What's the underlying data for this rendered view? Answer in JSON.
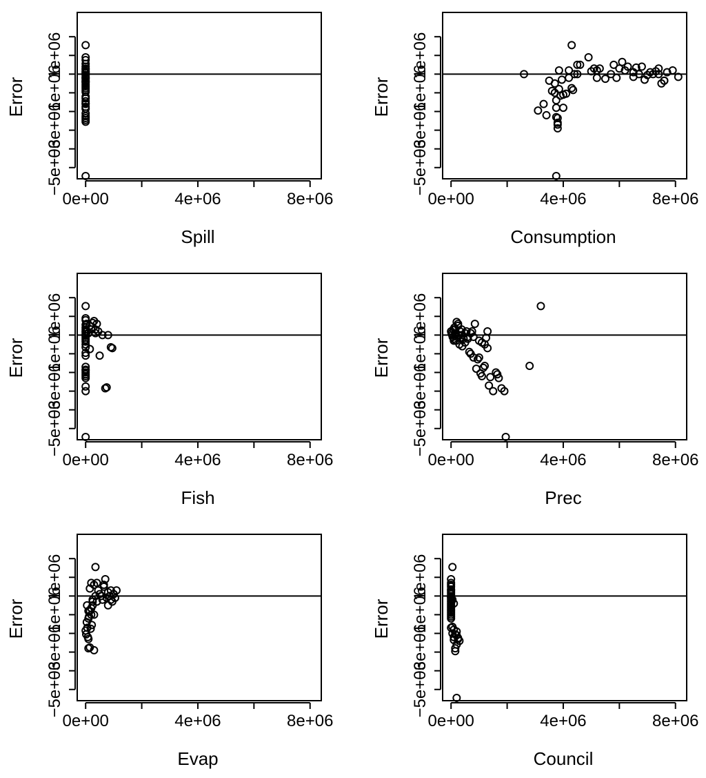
{
  "chart_data": [
    {
      "type": "scatter",
      "xlabel": "Spill",
      "ylabel": "Error",
      "xlim": [
        -300000,
        8400000
      ],
      "ylim": [
        -5600000,
        3300000
      ],
      "xticks": [
        0,
        2000000,
        4000000,
        6000000,
        8000000
      ],
      "xtick_labels": [
        "0e+00",
        "",
        "4e+06",
        "",
        "8e+06"
      ],
      "yticks": [
        -5000000,
        -4000000,
        -3000000,
        -2000000,
        -1000000,
        0,
        1000000,
        2000000
      ],
      "ytick_labels": [
        "−5e+06",
        "",
        "−3e+06",
        "",
        "−1e+06",
        "",
        "1e+06",
        ""
      ],
      "hline": 0,
      "x": [
        0,
        0,
        0,
        0,
        0,
        0,
        0,
        0,
        0,
        0,
        0,
        0,
        0,
        0,
        0,
        0,
        0,
        0,
        0,
        0,
        0,
        0,
        0,
        0,
        0,
        0,
        0,
        0,
        0,
        0,
        0,
        0,
        0,
        0,
        0
      ],
      "y": [
        1550000,
        900000,
        750000,
        550000,
        400000,
        250000,
        150000,
        50000,
        -50000,
        -150000,
        -250000,
        -350000,
        -450000,
        -550000,
        -650000,
        -750000,
        -850000,
        -1200000,
        -1300000,
        -1450000,
        -1600000,
        -1750000,
        -1850000,
        -2100000,
        -2250000,
        -2350000,
        -2450000,
        -2550000,
        -5450000,
        300000,
        100000,
        -200000,
        -400000,
        -950000,
        -1550000
      ]
    },
    {
      "type": "scatter",
      "xlabel": "Consumption",
      "ylabel": "Error",
      "xlim": [
        -300000,
        8400000
      ],
      "ylim": [
        -5600000,
        3300000
      ],
      "xticks": [
        0,
        2000000,
        4000000,
        6000000,
        8000000
      ],
      "xtick_labels": [
        "0e+00",
        "",
        "4e+06",
        "",
        "8e+06"
      ],
      "yticks": [
        -5000000,
        -4000000,
        -3000000,
        -2000000,
        -1000000,
        0,
        1000000,
        2000000
      ],
      "ytick_labels": [
        "−5e+06",
        "",
        "−3e+06",
        "",
        "−1e+06",
        "",
        "1e+06",
        ""
      ],
      "hline": 0,
      "x": [
        2600000,
        3100000,
        3300000,
        3400000,
        3500000,
        3600000,
        3700000,
        3700000,
        3750000,
        3750000,
        3800000,
        3800000,
        3850000,
        3850000,
        3900000,
        3950000,
        4000000,
        4100000,
        4200000,
        4300000,
        4350000,
        4400000,
        4500000,
        4500000,
        4600000,
        4900000,
        5000000,
        5100000,
        5200000,
        5300000,
        5500000,
        5700000,
        5800000,
        5900000,
        6000000,
        6100000,
        6200000,
        6300000,
        6500000,
        6600000,
        6700000,
        6800000,
        6900000,
        7100000,
        7200000,
        7300000,
        7400000,
        7500000,
        7600000,
        7700000,
        7900000,
        8100000,
        3800000,
        3800000,
        3750000,
        3750000,
        4000000,
        4200000,
        4300000,
        5200000,
        6500000,
        7000000,
        7400000,
        7600000
      ],
      "y": [
        0,
        -1950000,
        -1600000,
        -2200000,
        -350000,
        -900000,
        -1000000,
        -500000,
        -1800000,
        -2300000,
        -2700000,
        -2900000,
        -800000,
        200000,
        -1150000,
        -300000,
        -1800000,
        -1050000,
        200000,
        1550000,
        -850000,
        0,
        500000,
        0,
        500000,
        900000,
        150000,
        300000,
        200000,
        300000,
        -250000,
        0,
        500000,
        -200000,
        300000,
        650000,
        200000,
        400000,
        -150000,
        350000,
        0,
        400000,
        -300000,
        100000,
        0,
        150000,
        300000,
        -500000,
        -350000,
        100000,
        200000,
        -150000,
        -2350000,
        -2600000,
        -1400000,
        -5450000,
        -1100000,
        -200000,
        -750000,
        -200000,
        100000,
        -50000,
        0,
        -350000
      ]
    },
    {
      "type": "scatter",
      "xlabel": "Fish",
      "ylabel": "Error",
      "xlim": [
        -300000,
        8400000
      ],
      "ylim": [
        -5600000,
        3300000
      ],
      "xticks": [
        0,
        2000000,
        4000000,
        6000000,
        8000000
      ],
      "xtick_labels": [
        "0e+00",
        "",
        "4e+06",
        "",
        "8e+06"
      ],
      "yticks": [
        -5000000,
        -4000000,
        -3000000,
        -2000000,
        -1000000,
        0,
        1000000,
        2000000
      ],
      "ytick_labels": [
        "−5e+06",
        "",
        "−3e+06",
        "",
        "−1e+06",
        "",
        "1e+06",
        ""
      ],
      "hline": 0,
      "x": [
        0,
        0,
        0,
        0,
        0,
        0,
        0,
        0,
        0,
        0,
        0,
        0,
        0,
        0,
        0,
        0,
        0,
        0,
        0,
        0,
        0,
        0,
        0,
        0,
        0,
        0,
        0,
        30000,
        50000,
        100000,
        150000,
        200000,
        300000,
        350000,
        400000,
        450000,
        500000,
        600000,
        700000,
        750000,
        800000,
        900000,
        950000,
        350000,
        250000,
        150000
      ],
      "y": [
        1550000,
        900000,
        550000,
        400000,
        300000,
        150000,
        50000,
        -50000,
        -150000,
        -250000,
        -350000,
        -500000,
        -650000,
        -950000,
        -1700000,
        -1850000,
        -2000000,
        -2100000,
        -2200000,
        -2300000,
        -2750000,
        -3000000,
        -5450000,
        800000,
        -1100000,
        -1900000,
        200000,
        600000,
        200000,
        100000,
        500000,
        300000,
        750000,
        300000,
        600000,
        200000,
        -1100000,
        0,
        -2850000,
        -2800000,
        0,
        -650000,
        -700000,
        100000,
        650000,
        -750000
      ]
    },
    {
      "type": "scatter",
      "xlabel": "Prec",
      "ylabel": "Error",
      "xlim": [
        -300000,
        8400000
      ],
      "ylim": [
        -5600000,
        3300000
      ],
      "xticks": [
        0,
        2000000,
        4000000,
        6000000,
        8000000
      ],
      "xtick_labels": [
        "0e+00",
        "",
        "4e+06",
        "",
        "8e+06"
      ],
      "yticks": [
        -5000000,
        -4000000,
        -3000000,
        -2000000,
        -1000000,
        0,
        1000000,
        2000000
      ],
      "ytick_labels": [
        "−5e+06",
        "",
        "−3e+06",
        "",
        "−1e+06",
        "",
        "1e+06",
        ""
      ],
      "hline": 0,
      "x": [
        0,
        20000,
        40000,
        60000,
        80000,
        100000,
        120000,
        150000,
        180000,
        200000,
        220000,
        250000,
        280000,
        300000,
        320000,
        350000,
        380000,
        400000,
        450000,
        500000,
        550000,
        600000,
        650000,
        700000,
        750000,
        800000,
        850000,
        900000,
        950000,
        1000000,
        1050000,
        1100000,
        1150000,
        1200000,
        1250000,
        1300000,
        1350000,
        1400000,
        1500000,
        1600000,
        1650000,
        1700000,
        1800000,
        1900000,
        1950000,
        2800000,
        3200000,
        250000,
        300000,
        150000,
        100000,
        1300000,
        1200000,
        1100000,
        800000,
        700000,
        600000,
        500000,
        400000,
        1000000
      ],
      "y": [
        200000,
        100000,
        0,
        -100000,
        300000,
        -200000,
        400000,
        100000,
        -300000,
        700000,
        -100000,
        500000,
        0,
        -500000,
        200000,
        -200000,
        300000,
        0,
        -200000,
        100000,
        200000,
        -100000,
        -900000,
        -1000000,
        200000,
        -1200000,
        600000,
        -1800000,
        -1300000,
        -1200000,
        -2050000,
        -2200000,
        -1750000,
        -1650000,
        -150000,
        200000,
        -2700000,
        -2250000,
        -3000000,
        -2000000,
        -2100000,
        -2300000,
        -2850000,
        -3000000,
        -5450000,
        -1650000,
        1550000,
        600000,
        0,
        300000,
        -300000,
        -700000,
        -500000,
        -400000,
        -100000,
        100000,
        -200000,
        -400000,
        -600000,
        -300000
      ]
    },
    {
      "type": "scatter",
      "xlabel": "Evap",
      "ylabel": "Error",
      "xlim": [
        -300000,
        8400000
      ],
      "ylim": [
        -5600000,
        3300000
      ],
      "xticks": [
        0,
        2000000,
        4000000,
        6000000,
        8000000
      ],
      "xtick_labels": [
        "0e+00",
        "",
        "4e+06",
        "",
        "8e+06"
      ],
      "yticks": [
        -5000000,
        -4000000,
        -3000000,
        -2000000,
        -1000000,
        0,
        1000000,
        2000000
      ],
      "ytick_labels": [
        "−5e+06",
        "",
        "−3e+06",
        "",
        "−1e+06",
        "",
        "1e+06",
        ""
      ],
      "hline": 0,
      "x": [
        0,
        20000,
        40000,
        60000,
        80000,
        100000,
        100000,
        120000,
        150000,
        150000,
        180000,
        200000,
        200000,
        220000,
        250000,
        250000,
        300000,
        300000,
        350000,
        400000,
        450000,
        500000,
        550000,
        600000,
        650000,
        700000,
        750000,
        800000,
        850000,
        900000,
        950000,
        1000000,
        1050000,
        1100000,
        350000,
        100000,
        50000,
        150000,
        250000,
        650000,
        400000,
        800000,
        900000,
        1000000,
        300000,
        200000,
        100000
      ],
      "y": [
        -1850000,
        -2050000,
        -1400000,
        -1700000,
        -2200000,
        -2800000,
        -2300000,
        -1100000,
        -800000,
        -2750000,
        -1750000,
        -650000,
        -1000000,
        -1550000,
        -300000,
        -500000,
        -2900000,
        -1000000,
        1550000,
        700000,
        300000,
        100000,
        0,
        -200000,
        500000,
        900000,
        -100000,
        200000,
        0,
        300000,
        -300000,
        100000,
        -100000,
        300000,
        0,
        -1200000,
        -500000,
        400000,
        -200000,
        600000,
        -300000,
        -500000,
        -200000,
        100000,
        600000,
        700000,
        -800000
      ]
    },
    {
      "type": "scatter",
      "xlabel": "Council",
      "ylabel": "Error",
      "xlim": [
        -300000,
        8400000
      ],
      "ylim": [
        -5600000,
        3300000
      ],
      "xticks": [
        0,
        2000000,
        4000000,
        6000000,
        8000000
      ],
      "xtick_labels": [
        "0e+00",
        "",
        "4e+06",
        "",
        "8e+06"
      ],
      "yticks": [
        -5000000,
        -4000000,
        -3000000,
        -2000000,
        -1000000,
        0,
        1000000,
        2000000
      ],
      "ytick_labels": [
        "−5e+06",
        "",
        "−3e+06",
        "",
        "−1e+06",
        "",
        "1e+06",
        ""
      ],
      "hline": 0,
      "x": [
        0,
        0,
        0,
        0,
        0,
        0,
        0,
        0,
        0,
        0,
        0,
        0,
        0,
        0,
        0,
        0,
        0,
        0,
        0,
        0,
        0,
        0,
        0,
        50000,
        50000,
        50000,
        100000,
        100000,
        100000,
        150000,
        150000,
        150000,
        200000,
        200000,
        200000,
        200000,
        250000,
        250000,
        300000,
        100000,
        50000
      ],
      "y": [
        900000,
        700000,
        500000,
        350000,
        200000,
        100000,
        0,
        -100000,
        -200000,
        -300000,
        -400000,
        -500000,
        -600000,
        -700000,
        -800000,
        -900000,
        -1000000,
        -1100000,
        -1200000,
        -1700000,
        600000,
        300000,
        -50000,
        -1650000,
        -2000000,
        1550000,
        -2200000,
        -2350000,
        -1800000,
        -2050000,
        -2800000,
        -2950000,
        -2600000,
        -2100000,
        -5450000,
        -1900000,
        -2300000,
        -2250000,
        -2400000,
        -400000,
        -200000
      ]
    }
  ]
}
